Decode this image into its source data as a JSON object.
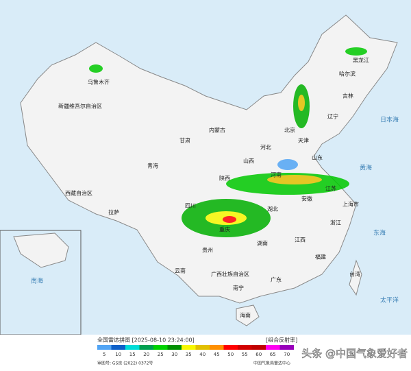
{
  "map": {
    "labels": [
      "新疆维吾尔自治区",
      "西藏自治区",
      "青海",
      "甘肃",
      "内蒙古",
      "黑龙江",
      "吉林",
      "辽宁",
      "北京",
      "天津",
      "河北",
      "山西",
      "陕西",
      "四川",
      "重庆",
      "贵州",
      "云南",
      "广西壮族自治区",
      "广东",
      "湖南",
      "湖北",
      "河南",
      "山东",
      "江苏",
      "安徽",
      "上海市",
      "浙江",
      "江西",
      "福建",
      "台湾",
      "海南",
      "乌鲁木齐",
      "拉萨",
      "南宁",
      "哈尔滨",
      "日本海",
      "黄海",
      "东海",
      "太平洋",
      "南海"
    ],
    "legend": {
      "title": "全国雷达拼图 [2025-08-10 23:24:00]",
      "product": "[组合反射率]",
      "values": [
        5,
        10,
        15,
        20,
        25,
        30,
        35,
        40,
        45,
        50,
        55,
        60,
        65,
        70
      ],
      "colors": [
        "#52a5f5",
        "#0e60c8",
        "#00ddd8",
        "#00a050",
        "#00d200",
        "#009000",
        "#f7f700",
        "#e2c000",
        "#ff9000",
        "#ff0000",
        "#d20000",
        "#c00000",
        "#ff00f0",
        "#9900bb"
      ]
    },
    "approval": "审图号: GS京 (2022) 0372号",
    "source": "中国气象局雷达中心",
    "watermark": "头条 @中国气象爱好者"
  }
}
